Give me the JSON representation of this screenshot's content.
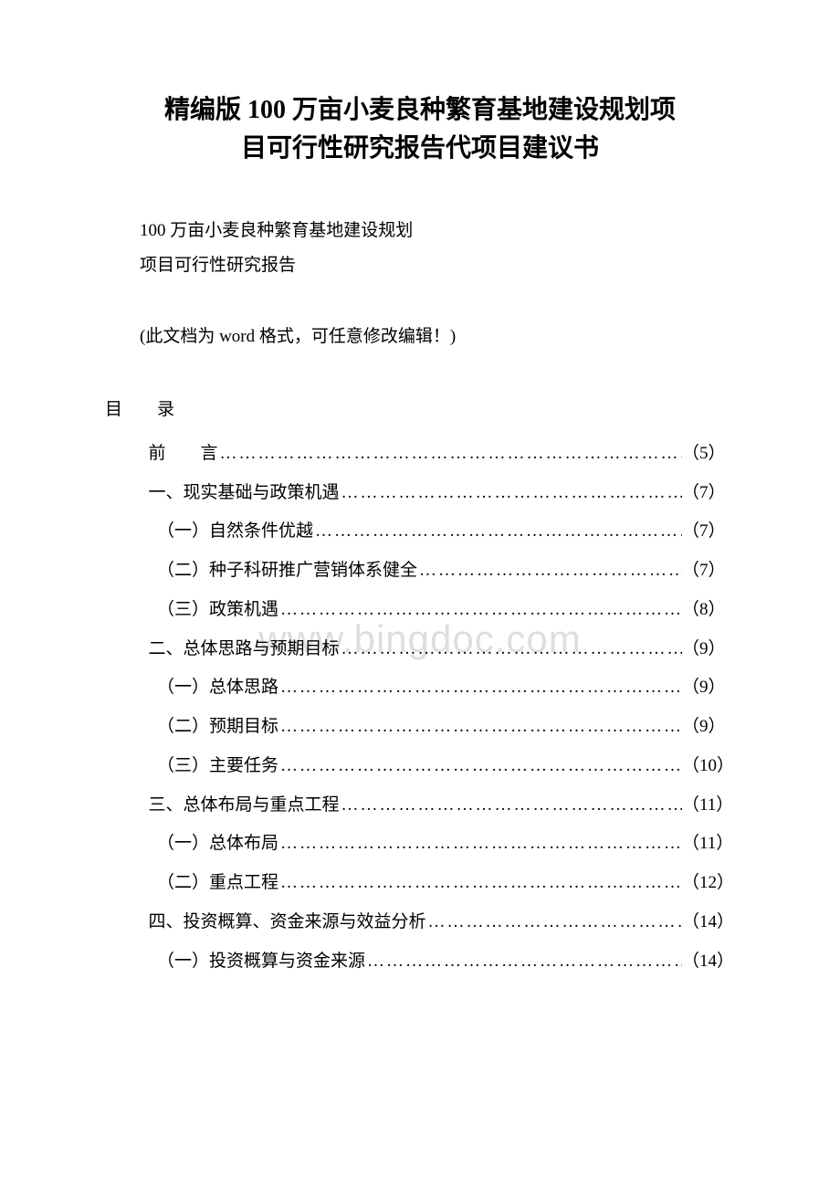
{
  "title": {
    "line1": "精编版 100 万亩小麦良种繁育基地建设规划项",
    "line2": "目可行性研究报告代项目建议书"
  },
  "subtitle": {
    "line1": "100 万亩小麦良种繁育基地建设规划",
    "line2": "项目可行性研究报告"
  },
  "note": "(此文档为 word 格式，可任意修改编辑！)",
  "toc_header": "目　　录",
  "watermark": "www.bingdoc.com",
  "toc": [
    {
      "label": "前　　言",
      "page": "（5）",
      "indent": 1
    },
    {
      "label": "一、现实基础与政策机遇",
      "page": "（7）",
      "indent": 2
    },
    {
      "label": "（一）自然条件优越",
      "page": "（7）",
      "indent": 3
    },
    {
      "label": "（二）种子科研推广营销体系健全",
      "page": "（7）",
      "indent": 3
    },
    {
      "label": "（三）政策机遇",
      "page": "（8）",
      "indent": 3
    },
    {
      "label": "二、总体思路与预期目标",
      "page": "（9）",
      "indent": 2
    },
    {
      "label": "（一）总体思路",
      "page": "（9）",
      "indent": 3
    },
    {
      "label": "（二）预期目标",
      "page": "（9）",
      "indent": 3
    },
    {
      "label": "（三）主要任务",
      "page": "（10）",
      "indent": 3
    },
    {
      "label": "三、总体布局与重点工程",
      "page": "（11）",
      "indent": 2
    },
    {
      "label": "（一）总体布局",
      "page": "（11）",
      "indent": 3
    },
    {
      "label": "（二）重点工程",
      "page": "（12）",
      "indent": 3
    },
    {
      "label": "四、投资概算、资金来源与效益分析",
      "page": "（14）",
      "indent": 2
    },
    {
      "label": "（一）投资概算与资金来源",
      "page": "（14）",
      "indent": 3
    }
  ],
  "dots": "……………………………………………………………………………………"
}
